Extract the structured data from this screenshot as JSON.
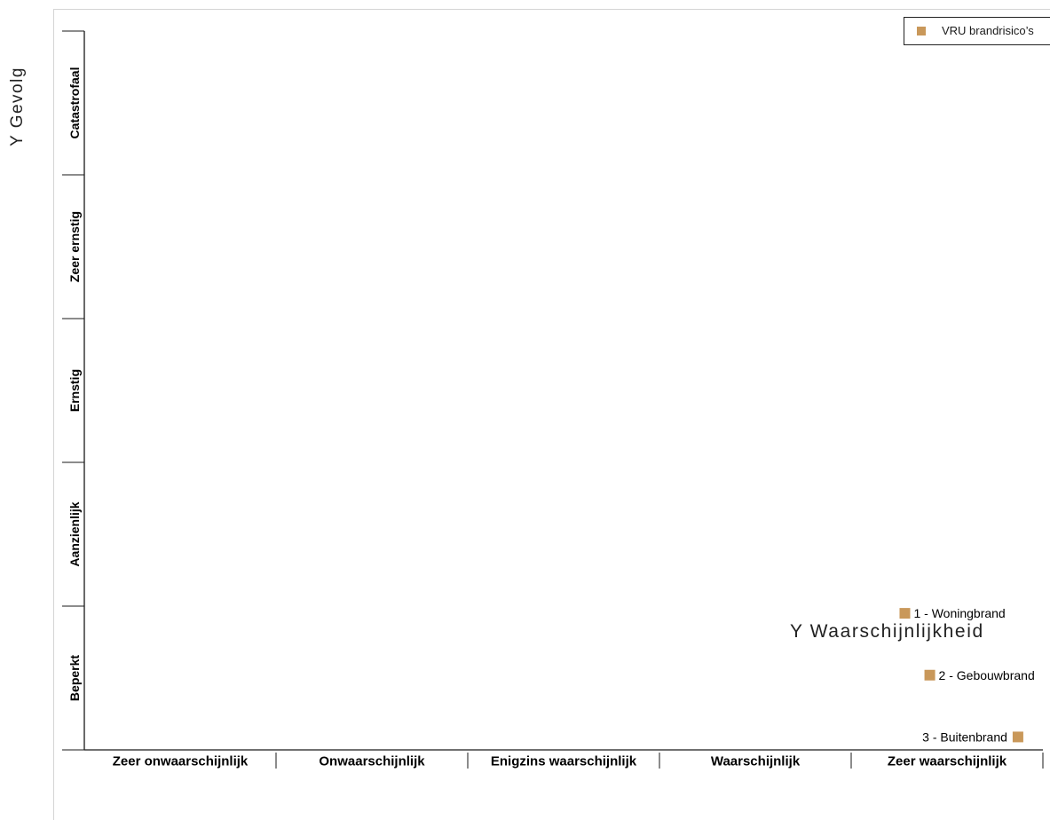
{
  "page": {
    "y_title": "Y   Gevolg",
    "x_title": "Y   Waarschijnlijkheid"
  },
  "legend": {
    "label": "VRU brandrisico’s",
    "color": "#c9985a"
  },
  "chart_data": {
    "type": "scatter",
    "title": "",
    "xlabel": "Waarschijnlijkheid",
    "ylabel": "Gevolg",
    "x_categories": [
      "Zeer onwaarschijnlijk",
      "Onwaarschijnlijk",
      "Enigzins waarschijnlijk",
      "Waarschijnlijk",
      "Zeer waarschijnlijk"
    ],
    "y_categories": [
      "Beperkt",
      "Aanzienlijk",
      "Ernstig",
      "Zeer ernstig",
      "Catastrofaal"
    ],
    "xlim": [
      0,
      5
    ],
    "ylim": [
      0,
      5
    ],
    "grid": false,
    "legend_position": "top-right",
    "series": [
      {
        "name": "VRU brandrisico’s",
        "color": "#c9985a",
        "points": [
          {
            "label": "1 - Woningbrand",
            "x": 4.28,
            "y": 0.95
          },
          {
            "label": "2 - Gebouwbrand",
            "x": 4.41,
            "y": 0.52
          },
          {
            "label": "3 - Buitenbrand",
            "x": 4.87,
            "y": 0.09
          }
        ]
      }
    ]
  }
}
